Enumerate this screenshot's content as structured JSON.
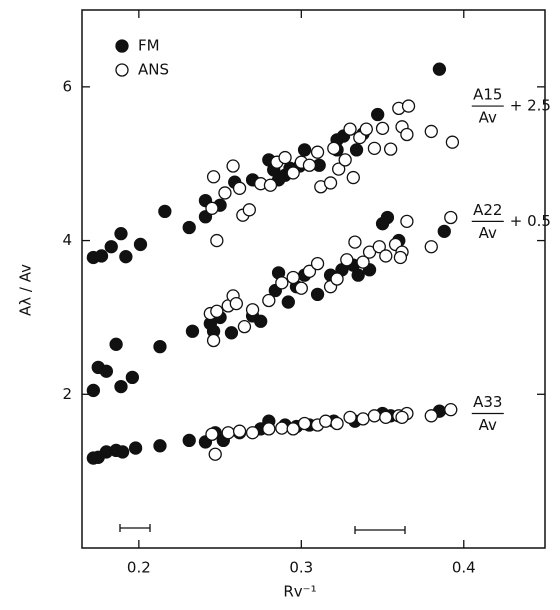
{
  "chart_data": {
    "type": "scatter",
    "x_label": "Rv⁻¹",
    "y_label": "Aλ / Av",
    "xlim": [
      0.165,
      0.45
    ],
    "ylim": [
      0,
      7.0
    ],
    "xticks": [
      0.2,
      0.3,
      0.4
    ],
    "yticks": [
      2,
      4,
      6
    ],
    "legend": "upper left",
    "series": [
      {
        "name": "FM",
        "color": "#111111",
        "marker": "filled",
        "x": [
          0.172,
          0.177,
          0.183,
          0.189,
          0.192,
          0.201,
          0.216,
          0.231,
          0.241,
          0.241,
          0.25,
          0.259,
          0.27,
          0.28,
          0.283,
          0.286,
          0.29,
          0.293,
          0.299,
          0.302,
          0.311,
          0.322,
          0.322,
          0.326,
          0.334,
          0.338,
          0.347,
          0.385,
          0.172,
          0.175,
          0.18,
          0.186,
          0.189,
          0.196,
          0.213,
          0.233,
          0.244,
          0.246,
          0.25,
          0.257,
          0.27,
          0.275,
          0.284,
          0.286,
          0.292,
          0.297,
          0.302,
          0.31,
          0.318,
          0.325,
          0.332,
          0.335,
          0.342,
          0.35,
          0.353,
          0.36,
          0.388,
          0.172,
          0.175,
          0.18,
          0.186,
          0.19,
          0.198,
          0.213,
          0.231,
          0.241,
          0.247,
          0.252,
          0.262,
          0.275,
          0.28,
          0.29,
          0.297,
          0.305,
          0.32,
          0.333,
          0.35,
          0.355,
          0.385
        ],
        "values": [
          3.78,
          3.8,
          3.92,
          4.09,
          3.79,
          3.95,
          4.38,
          4.17,
          4.52,
          4.31,
          4.46,
          4.76,
          4.79,
          5.05,
          4.92,
          4.79,
          4.85,
          4.94,
          4.97,
          5.18,
          4.98,
          5.31,
          5.18,
          5.36,
          5.18,
          5.39,
          5.64,
          6.23,
          2.05,
          2.35,
          2.3,
          2.65,
          2.1,
          2.22,
          2.62,
          2.82,
          2.92,
          2.82,
          3.0,
          2.8,
          3.02,
          2.95,
          3.35,
          3.58,
          3.2,
          3.4,
          3.55,
          3.3,
          3.55,
          3.62,
          3.68,
          3.55,
          3.62,
          4.22,
          4.3,
          4.0,
          4.12,
          1.17,
          1.18,
          1.25,
          1.27,
          1.25,
          1.3,
          1.33,
          1.4,
          1.38,
          1.5,
          1.4,
          1.5,
          1.55,
          1.65,
          1.6,
          1.58,
          1.6,
          1.65,
          1.65,
          1.75,
          1.72,
          1.78
        ]
      },
      {
        "name": "ANS",
        "color": "#111111",
        "marker": "open",
        "x": [
          0.246,
          0.248,
          0.245,
          0.253,
          0.258,
          0.262,
          0.264,
          0.268,
          0.275,
          0.281,
          0.285,
          0.29,
          0.295,
          0.3,
          0.305,
          0.31,
          0.312,
          0.318,
          0.32,
          0.323,
          0.327,
          0.33,
          0.332,
          0.336,
          0.34,
          0.345,
          0.35,
          0.355,
          0.36,
          0.362,
          0.365,
          0.38,
          0.393,
          0.366,
          0.244,
          0.246,
          0.248,
          0.255,
          0.258,
          0.26,
          0.265,
          0.27,
          0.28,
          0.288,
          0.295,
          0.3,
          0.305,
          0.31,
          0.318,
          0.322,
          0.328,
          0.333,
          0.338,
          0.342,
          0.348,
          0.352,
          0.358,
          0.362,
          0.365,
          0.38,
          0.392,
          0.361,
          0.245,
          0.247,
          0.255,
          0.262,
          0.27,
          0.28,
          0.288,
          0.295,
          0.302,
          0.31,
          0.315,
          0.322,
          0.33,
          0.338,
          0.345,
          0.352,
          0.36,
          0.365,
          0.38,
          0.392,
          0.362
        ],
        "values": [
          4.83,
          4.0,
          4.42,
          4.62,
          4.97,
          4.68,
          4.33,
          4.4,
          4.74,
          4.72,
          5.02,
          5.08,
          4.88,
          5.02,
          4.98,
          5.15,
          4.7,
          4.75,
          5.2,
          4.93,
          5.05,
          5.45,
          4.82,
          5.34,
          5.45,
          5.2,
          5.46,
          5.19,
          5.72,
          5.48,
          5.38,
          5.42,
          5.28,
          5.75,
          3.05,
          2.7,
          3.08,
          3.15,
          3.28,
          3.18,
          2.88,
          3.1,
          3.22,
          3.45,
          3.52,
          3.38,
          3.6,
          3.7,
          3.4,
          3.5,
          3.75,
          3.98,
          3.72,
          3.85,
          3.92,
          3.8,
          3.95,
          3.85,
          4.25,
          3.92,
          4.3,
          3.78,
          1.48,
          1.22,
          1.5,
          1.52,
          1.5,
          1.55,
          1.56,
          1.55,
          1.62,
          1.6,
          1.65,
          1.62,
          1.7,
          1.68,
          1.72,
          1.7,
          1.72,
          1.75,
          1.72,
          1.8,
          1.7
        ]
      }
    ],
    "annotations": [
      {
        "numerator": "A15",
        "denominator": "Av",
        "suffix": "+ 2.5",
        "x": 0.4,
        "y": 5.75
      },
      {
        "numerator": "A22",
        "denominator": "Av",
        "suffix": "+ 0.5",
        "x": 0.4,
        "y": 4.25
      },
      {
        "numerator": "A33",
        "denominator": "Av",
        "x": 0.4,
        "y": 1.75
      }
    ]
  }
}
